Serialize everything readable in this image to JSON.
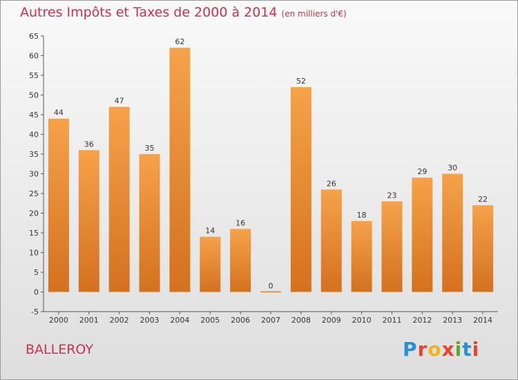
{
  "header": {
    "title": "Autres Impôts et Taxes de 2000 à 2014",
    "unit": "(en milliers d'€)"
  },
  "footer": {
    "commune": "BALLEROY",
    "logo_text": "Proxiti"
  },
  "colors": {
    "bar": "#f0922f",
    "bar_dark": "#d4711e",
    "title": "#c8324e"
  },
  "chart_data": {
    "type": "bar",
    "title": "Autres Impôts et Taxes de 2000 à 2014",
    "subtitle": "(en milliers d'€)",
    "categories": [
      "2000",
      "2001",
      "2002",
      "2003",
      "2004",
      "2005",
      "2006",
      "2007",
      "2008",
      "2009",
      "2010",
      "2011",
      "2012",
      "2013",
      "2014"
    ],
    "values": [
      44,
      36,
      47,
      35,
      62,
      14,
      16,
      0,
      52,
      26,
      18,
      23,
      29,
      30,
      22
    ],
    "ylim": [
      -5,
      65
    ],
    "yticks": [
      -5,
      0,
      5,
      10,
      15,
      20,
      25,
      30,
      35,
      40,
      45,
      50,
      55,
      60,
      65
    ],
    "grid": false,
    "data_labels": true
  }
}
